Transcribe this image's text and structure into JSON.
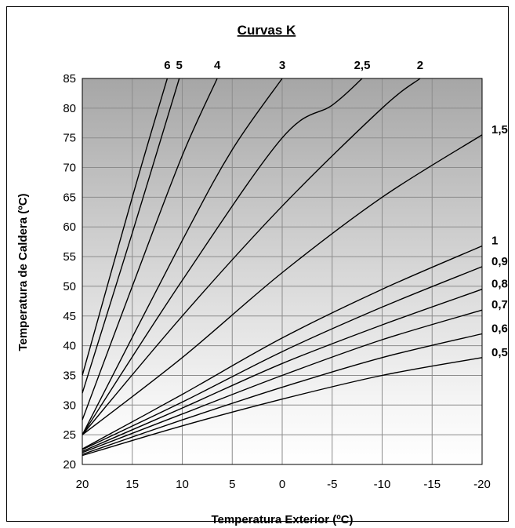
{
  "chart_data": {
    "type": "line",
    "title": "Curvas K",
    "xlabel": "Temperatura Exterior (ºC)",
    "ylabel": "Temperatura de Caldera (ºC)",
    "xlim": [
      20,
      -20
    ],
    "ylim": [
      20,
      85
    ],
    "x_ticks": [
      20,
      15,
      10,
      5,
      0,
      -5,
      -10,
      -15,
      -20
    ],
    "y_ticks": [
      20,
      25,
      30,
      35,
      40,
      45,
      50,
      55,
      60,
      65,
      70,
      75,
      80,
      85
    ],
    "grid": true,
    "background": "vertical gradient, dark gray at top to white at bottom",
    "series": [
      {
        "name": "0,5",
        "x": [
          20,
          10,
          0,
          -10,
          -20
        ],
        "y": [
          21.5,
          26.5,
          31,
          35,
          38
        ]
      },
      {
        "name": "0,6",
        "x": [
          20,
          10,
          0,
          -10,
          -20
        ],
        "y": [
          21.7,
          27.5,
          33,
          38,
          42
        ]
      },
      {
        "name": "0,7",
        "x": [
          20,
          10,
          0,
          -10,
          -20
        ],
        "y": [
          22,
          28.5,
          35,
          41,
          46
        ]
      },
      {
        "name": "0,8",
        "x": [
          20,
          10,
          0,
          -10,
          -20
        ],
        "y": [
          22.2,
          29.5,
          37,
          43.5,
          49.5
        ]
      },
      {
        "name": "0,9",
        "x": [
          20,
          10,
          0,
          -10,
          -20
        ],
        "y": [
          22.5,
          30.5,
          39,
          46.5,
          53.3
        ]
      },
      {
        "name": "1",
        "x": [
          20,
          10,
          0,
          -10,
          -20
        ],
        "y": [
          22.6,
          31.8,
          41.3,
          49.5,
          56.8
        ]
      },
      {
        "name": "1,5",
        "x": [
          20,
          10,
          0,
          -10,
          -20
        ],
        "y": [
          25,
          38,
          52.3,
          65,
          75.5
        ]
      },
      {
        "name": "2",
        "x": [
          20,
          10,
          0,
          -10,
          -13.8
        ],
        "y": [
          25,
          45,
          63.5,
          80,
          85
        ]
      },
      {
        "name": "2,5",
        "x": [
          20,
          10,
          0,
          -5,
          -8
        ],
        "y": [
          25,
          51,
          75,
          80.5,
          85
        ]
      },
      {
        "name": "3",
        "x": [
          20,
          10,
          5,
          0
        ],
        "y": [
          25,
          57.7,
          73,
          85
        ]
      },
      {
        "name": "4",
        "x": [
          20,
          15,
          10,
          6.5
        ],
        "y": [
          27.5,
          50,
          72,
          85
        ]
      },
      {
        "name": "5",
        "x": [
          20,
          15,
          10.3
        ],
        "y": [
          32,
          59,
          85
        ]
      },
      {
        "name": "6",
        "x": [
          20,
          15,
          11.5
        ],
        "y": [
          35,
          65,
          85
        ]
      }
    ]
  }
}
